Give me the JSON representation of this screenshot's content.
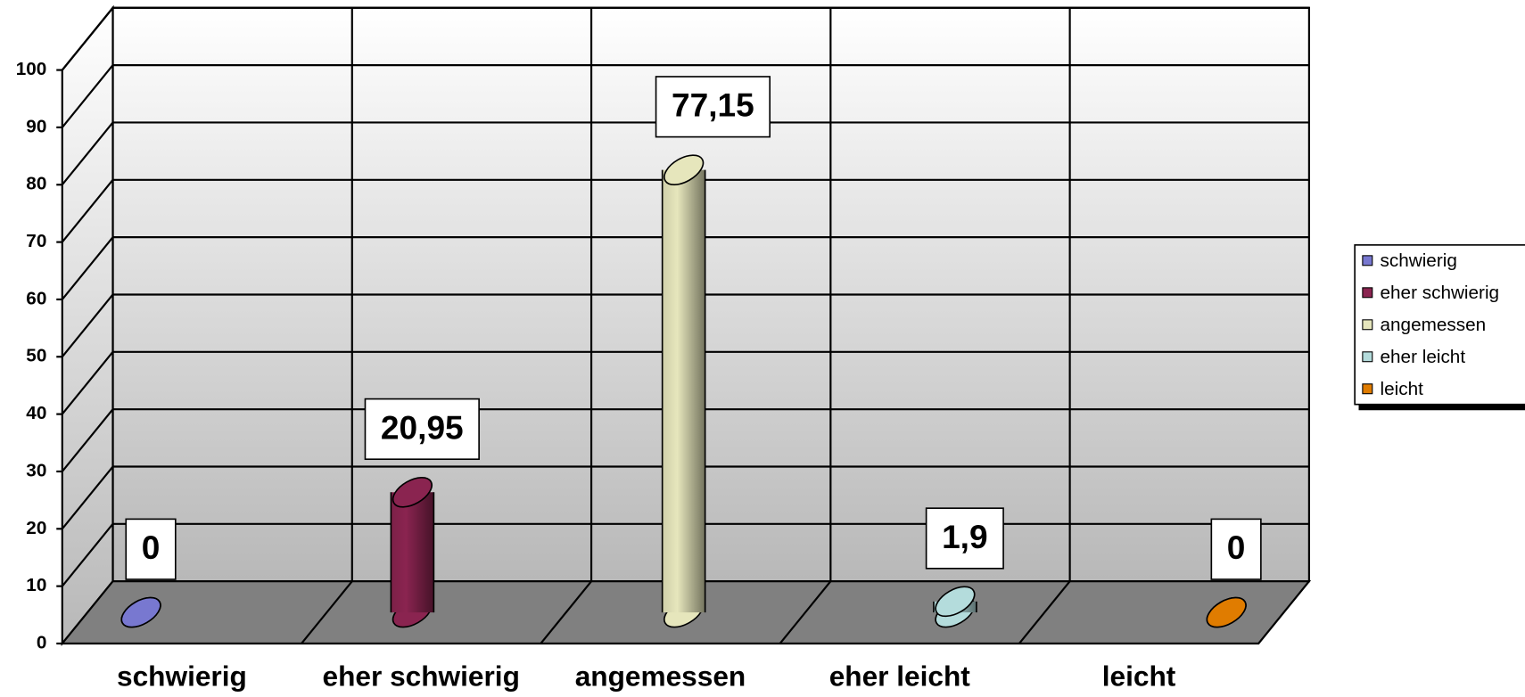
{
  "chart_data": {
    "type": "bar",
    "categories": [
      "schwierig",
      "eher schwierig",
      "angemessen",
      "eher leicht",
      "leicht"
    ],
    "values": [
      0,
      20.95,
      77.15,
      1.9,
      0
    ],
    "value_labels": [
      "0",
      "20,95",
      "77,15",
      "1,9",
      "0"
    ],
    "colors": [
      "#7878d0",
      "#8a2450",
      "#e6e6bc",
      "#b4dcdc",
      "#e07c00"
    ],
    "ylim": [
      0,
      100
    ],
    "yticks": [
      0,
      10,
      20,
      30,
      40,
      50,
      60,
      70,
      80,
      90,
      100
    ],
    "grid": true,
    "legend": "right"
  }
}
